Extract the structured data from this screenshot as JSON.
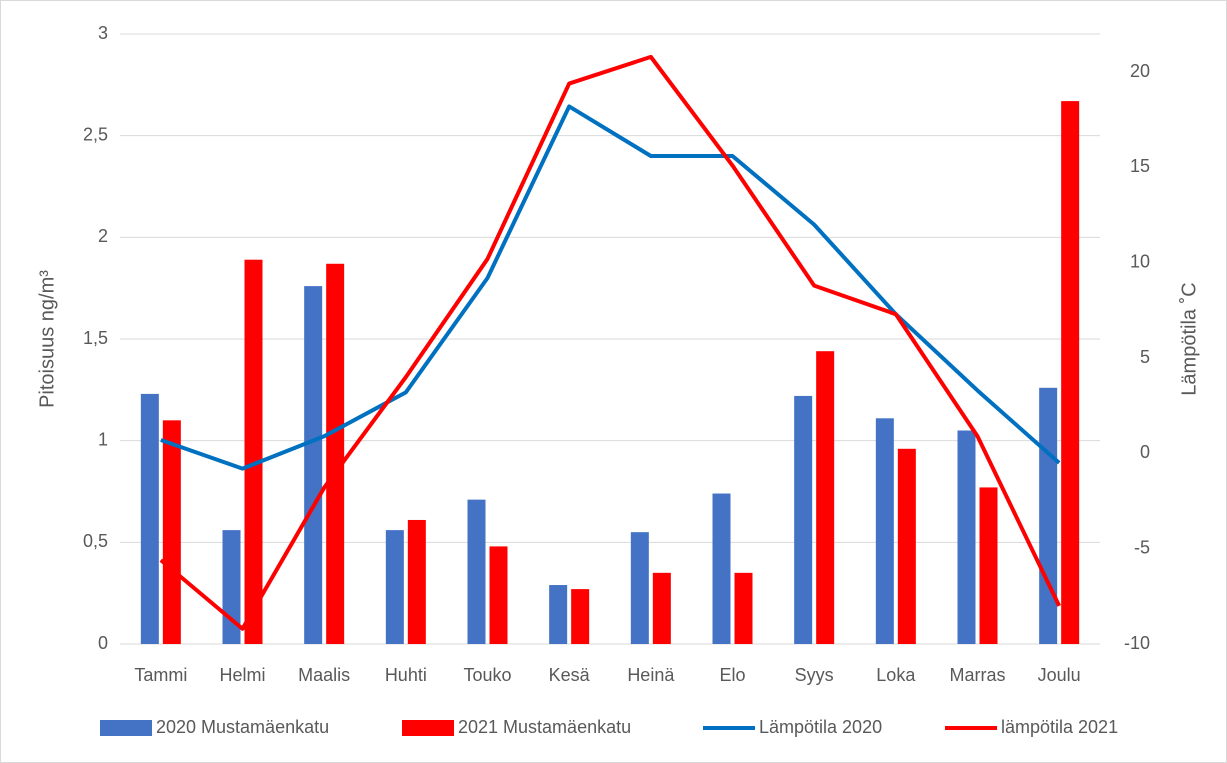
{
  "chart_data": {
    "type": "bar",
    "categories": [
      "Tammi",
      "Helmi",
      "Maalis",
      "Huhti",
      "Touko",
      "Kesä",
      "Heinä",
      "Elo",
      "Syys",
      "Loka",
      "Marras",
      "Joulu"
    ],
    "series": [
      {
        "name": "2020 Mustamäenkatu",
        "color": "#4472c4",
        "values": [
          1.23,
          0.56,
          1.76,
          0.56,
          0.71,
          0.29,
          0.55,
          0.74,
          1.22,
          1.11,
          1.05,
          1.26
        ]
      },
      {
        "name": "2021 Mustamäenkatu",
        "color": "#ff0000",
        "values": [
          1.1,
          1.89,
          1.87,
          0.61,
          0.48,
          0.27,
          0.35,
          0.35,
          1.44,
          0.96,
          0.77,
          2.67
        ]
      },
      {
        "name": "Lämpötila 2020",
        "color": "#0070c0",
        "axis": "y2",
        "values": [
          0.7,
          -0.8,
          0.9,
          3.2,
          9.2,
          18.2,
          15.6,
          15.6,
          12.0,
          7.3,
          3.3,
          -0.5
        ]
      },
      {
        "name": "lämpötila 2021",
        "color": "#ff0000",
        "axis": "y2",
        "values": [
          -5.6,
          -9.2,
          -1.8,
          4.0,
          10.2,
          19.4,
          20.8,
          15.1,
          8.8,
          7.3,
          0.9,
          -8.0
        ]
      }
    ],
    "y_label": "Pitoisuus ng/m³",
    "y2_label": "Lämpötila ˚C",
    "ylim": [
      0,
      3
    ],
    "yticks": [
      0,
      {
        "value": 0.5,
        "label": "0,5"
      },
      1,
      {
        "value": 1.5,
        "label": "1,5"
      },
      2,
      {
        "value": 2.5,
        "label": "2,5"
      },
      3
    ],
    "y2lim": [
      -10,
      22
    ],
    "y2ticks": [
      -10,
      -5,
      0,
      5,
      10,
      15,
      20
    ],
    "grid": true,
    "legend": "bottom"
  }
}
